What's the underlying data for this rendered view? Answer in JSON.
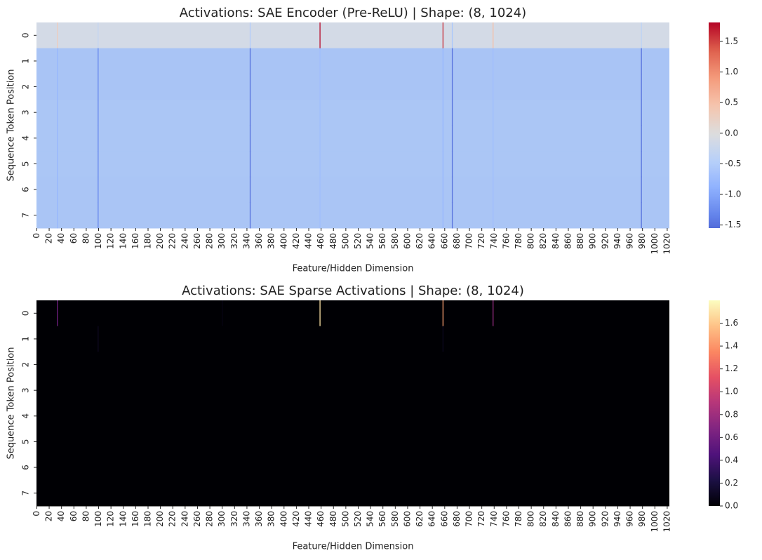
{
  "chart_data": [
    {
      "type": "heatmap",
      "title": "Activations: SAE Encoder (Pre-ReLU) | Shape: (8, 1024)",
      "xlabel": "Feature/Hidden Dimension",
      "ylabel": "Sequence Token Position",
      "cmap": "coolwarm",
      "center": 0,
      "clim": [
        -1.55,
        1.81
      ],
      "cbar_ticks": [
        -1.5,
        -1.0,
        -0.5,
        0.0,
        0.5,
        1.0,
        1.5
      ],
      "xlim": [
        0,
        1024
      ],
      "ylim": [
        0,
        8
      ],
      "xticks": [
        0,
        20,
        40,
        60,
        80,
        100,
        120,
        140,
        160,
        180,
        200,
        220,
        240,
        260,
        280,
        300,
        320,
        340,
        360,
        380,
        400,
        420,
        440,
        460,
        480,
        500,
        520,
        540,
        560,
        580,
        600,
        620,
        640,
        660,
        680,
        700,
        720,
        740,
        760,
        780,
        800,
        820,
        840,
        860,
        880,
        900,
        920,
        940,
        960,
        980,
        1000,
        1020
      ],
      "yticks": [
        0,
        1,
        2,
        3,
        4,
        5,
        6,
        7
      ],
      "background_colors": [
        "#d3dae6",
        "#a9c4f5",
        "#a9c4f5",
        "#abc6f5",
        "#abc6f5",
        "#abc6f5",
        "#aac5f5",
        "#aac5f5"
      ],
      "x": [
        33,
        99,
        345,
        458,
        657,
        672,
        738,
        978
      ],
      "values": [
        [
          0.3,
          -0.3,
          -0.5,
          1.78,
          1.6,
          -0.6,
          0.5,
          -0.4
        ],
        [
          -0.8,
          -1.3,
          -1.5,
          -0.7,
          -0.8,
          -1.5,
          -0.7,
          -1.5
        ],
        [
          -0.8,
          -1.3,
          -1.5,
          -0.7,
          -0.8,
          -1.5,
          -0.7,
          -1.5
        ],
        [
          -0.8,
          -1.3,
          -1.5,
          -0.7,
          -0.8,
          -1.5,
          -0.7,
          -1.5
        ],
        [
          -0.8,
          -1.3,
          -1.5,
          -0.7,
          -0.8,
          -1.5,
          -0.7,
          -1.5
        ],
        [
          -0.8,
          -1.3,
          -1.5,
          -0.7,
          -0.8,
          -1.5,
          -0.7,
          -1.5
        ],
        [
          -0.8,
          -1.3,
          -1.5,
          -0.7,
          -0.8,
          -1.5,
          -0.7,
          -1.5
        ],
        [
          -0.8,
          -1.3,
          -1.5,
          -0.7,
          -0.8,
          -1.5,
          -0.7,
          -1.5
        ]
      ]
    },
    {
      "type": "heatmap",
      "title": "Activations: SAE Sparse Activations | Shape: (8, 1024)",
      "xlabel": "Feature/Hidden Dimension",
      "ylabel": "Sequence Token Position",
      "cmap": "magma",
      "clim": [
        0,
        1.8
      ],
      "cbar_ticks": [
        0.0,
        0.2,
        0.4,
        0.6,
        0.8,
        1.0,
        1.2,
        1.4,
        1.6
      ],
      "xlim": [
        0,
        1024
      ],
      "ylim": [
        0,
        8
      ],
      "xticks": [
        0,
        20,
        40,
        60,
        80,
        100,
        120,
        140,
        160,
        180,
        200,
        220,
        240,
        260,
        280,
        300,
        320,
        340,
        360,
        380,
        400,
        420,
        440,
        460,
        480,
        500,
        520,
        540,
        560,
        580,
        600,
        620,
        640,
        660,
        680,
        700,
        720,
        740,
        760,
        780,
        800,
        820,
        840,
        860,
        880,
        900,
        920,
        940,
        960,
        980,
        1000,
        1020
      ],
      "yticks": [
        0,
        1,
        2,
        3,
        4,
        5,
        6,
        7
      ],
      "background_colors": [
        "#000004",
        "#000004",
        "#000004",
        "#000004",
        "#000004",
        "#000004",
        "#000004",
        "#000004"
      ],
      "x": [
        33,
        99,
        300,
        458,
        657,
        738
      ],
      "values": [
        [
          0.6,
          0,
          0.05,
          1.7,
          1.45,
          0.75
        ],
        [
          0,
          0.1,
          0,
          0,
          0.1,
          0
        ],
        [
          0,
          0,
          0,
          0,
          0,
          0
        ],
        [
          0,
          0,
          0,
          0,
          0,
          0
        ],
        [
          0,
          0,
          0,
          0,
          0,
          0
        ],
        [
          0,
          0,
          0,
          0,
          0,
          0
        ],
        [
          0,
          0,
          0,
          0,
          0,
          0
        ],
        [
          0,
          0,
          0,
          0,
          0,
          0
        ]
      ]
    }
  ]
}
